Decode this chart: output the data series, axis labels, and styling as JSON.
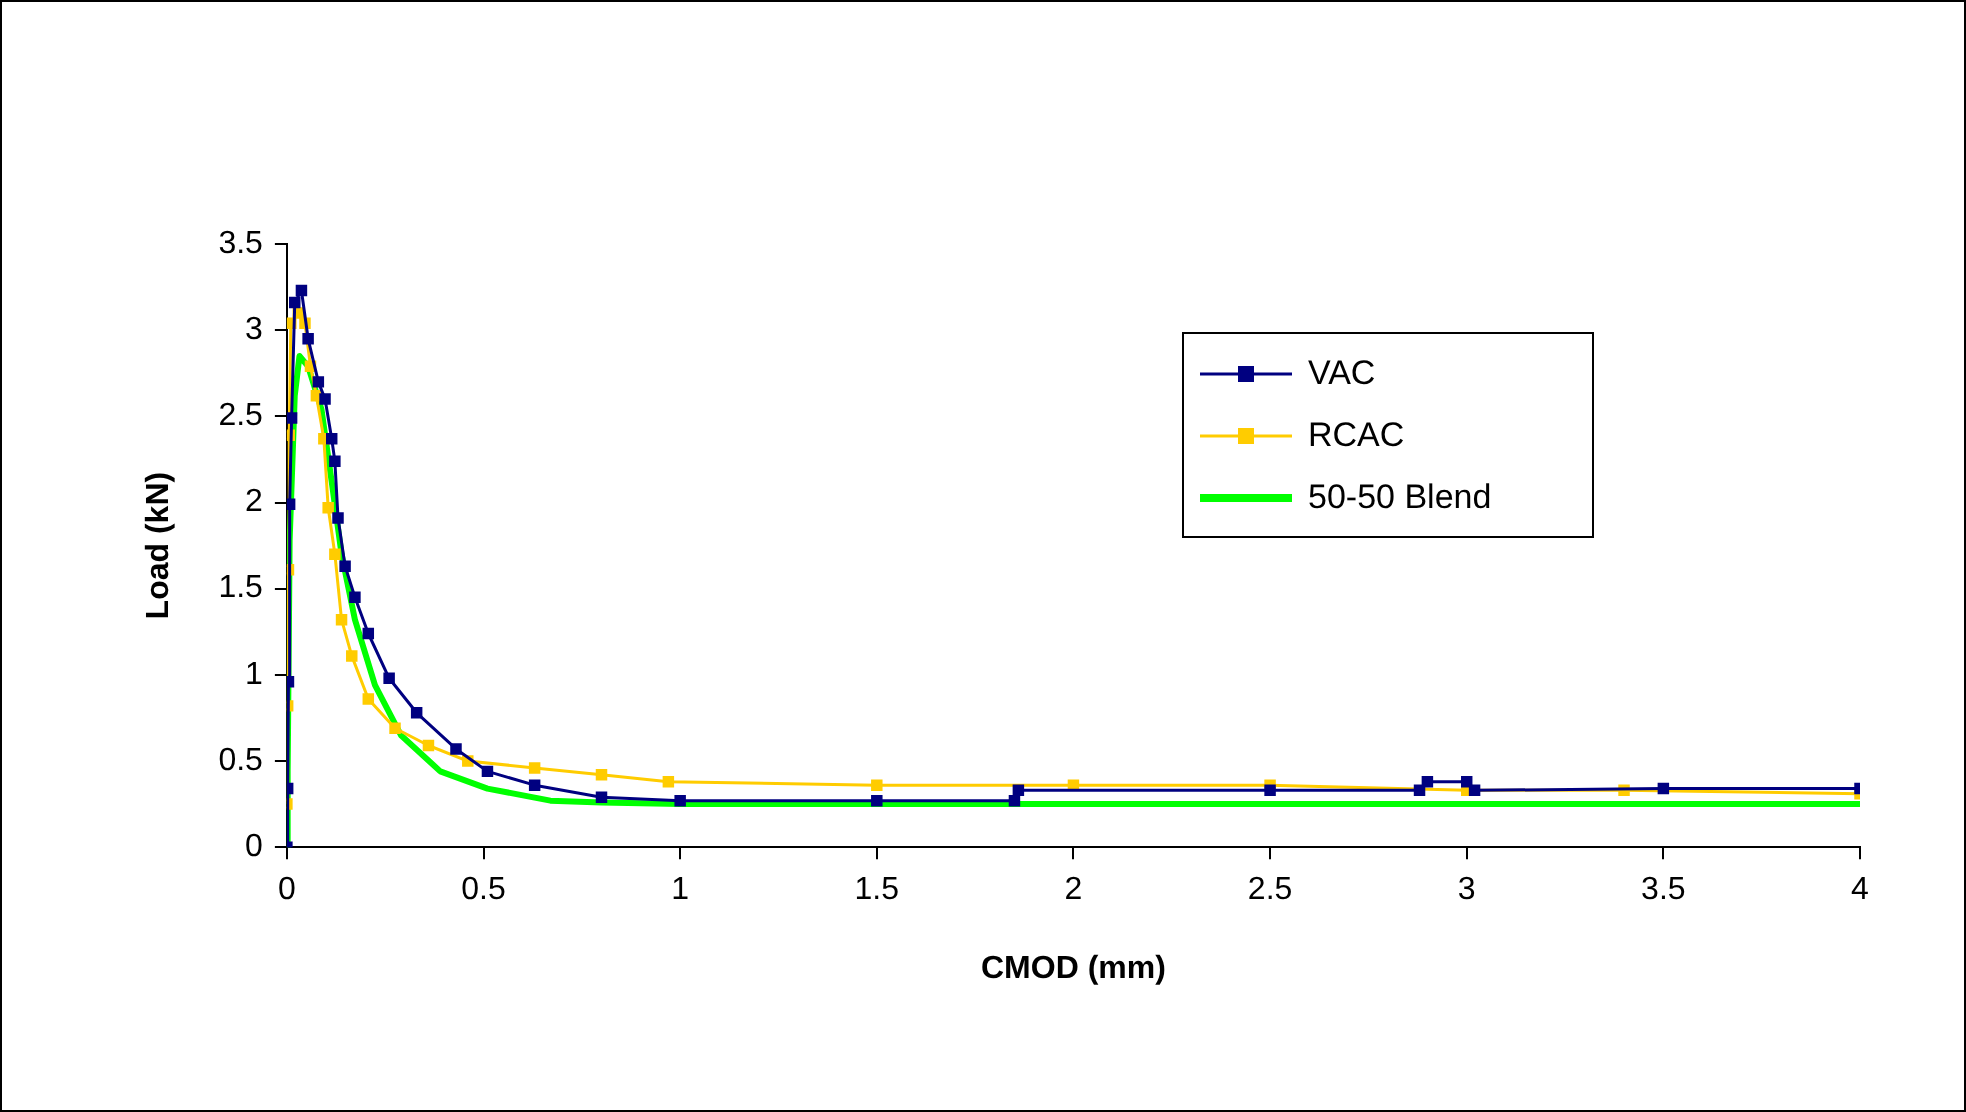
{
  "chart_data": {
    "type": "line",
    "xlabel": "CMOD (mm)",
    "ylabel": "Load (kN)",
    "xlim": [
      0,
      4
    ],
    "xticks": [
      0,
      0.5,
      1,
      1.5,
      2,
      2.5,
      3,
      3.5,
      4
    ],
    "ylim": [
      0,
      3.5
    ],
    "yticks": [
      0,
      0.5,
      1,
      1.5,
      2,
      2.5,
      3,
      3.5
    ],
    "grid": false,
    "legend": "right",
    "series": [
      {
        "name": "VAC",
        "color": "#000080",
        "marker": "square",
        "x": [
          0,
          0.002,
          0.004,
          0.007,
          0.012,
          0.02,
          0.037,
          0.054,
          0.08,
          0.097,
          0.114,
          0.122,
          0.13,
          0.148,
          0.173,
          0.207,
          0.26,
          0.33,
          0.43,
          0.51,
          0.63,
          0.8,
          1,
          1.5,
          1.85,
          1.86,
          2.5,
          2.88,
          2.9,
          3.0,
          3.02,
          3.5,
          4
        ],
        "values": [
          0,
          0.34,
          0.96,
          1.99,
          2.49,
          3.16,
          3.23,
          2.95,
          2.7,
          2.6,
          2.37,
          2.24,
          1.91,
          1.63,
          1.45,
          1.24,
          0.98,
          0.78,
          0.57,
          0.44,
          0.36,
          0.29,
          0.27,
          0.27,
          0.27,
          0.33,
          0.33,
          0.33,
          0.38,
          0.38,
          0.33,
          0.34,
          0.34
        ]
      },
      {
        "name": "RCAC",
        "color": "#ffcc00",
        "marker": "square",
        "x": [
          0,
          0.002,
          0.004,
          0.006,
          0.01,
          0.029,
          0.046,
          0.06,
          0.075,
          0.094,
          0.105,
          0.122,
          0.139,
          0.165,
          0.207,
          0.275,
          0.36,
          0.46,
          0.63,
          0.8,
          0.97,
          1.5,
          2,
          2.5,
          3,
          3.4,
          4
        ],
        "values": [
          0.25,
          0.82,
          1.61,
          2.39,
          3.04,
          3.1,
          3.04,
          2.79,
          2.62,
          2.37,
          1.97,
          1.7,
          1.32,
          1.11,
          0.86,
          0.69,
          0.59,
          0.5,
          0.46,
          0.42,
          0.38,
          0.36,
          0.36,
          0.36,
          0.33,
          0.33,
          0.31
        ]
      },
      {
        "name": "50-50 Blend",
        "color": "#00ff00",
        "marker": "none",
        "x": [
          0,
          0.002,
          0.007,
          0.02,
          0.032,
          0.054,
          0.088,
          0.114,
          0.139,
          0.173,
          0.224,
          0.29,
          0.39,
          0.51,
          0.67,
          0.8,
          1,
          2,
          3,
          4
        ],
        "values": [
          0,
          0.44,
          1.78,
          2.62,
          2.85,
          2.79,
          2.54,
          2.12,
          1.7,
          1.32,
          0.94,
          0.65,
          0.44,
          0.34,
          0.27,
          0.26,
          0.25,
          0.25,
          0.25,
          0.25
        ]
      }
    ]
  }
}
